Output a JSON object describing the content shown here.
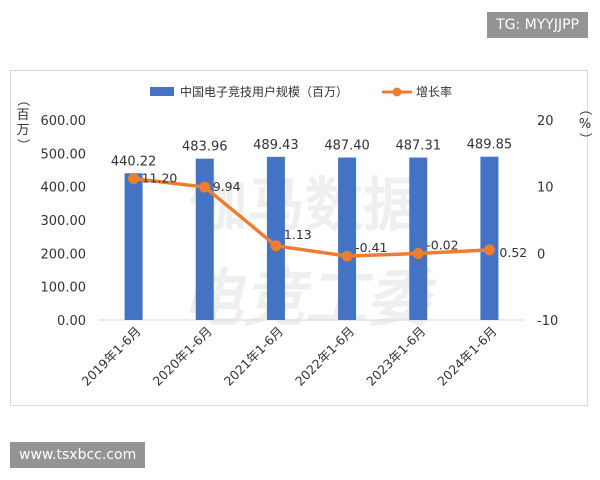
{
  "watermarks": {
    "top_right": "TG: MYYJJPP",
    "bottom_left": "www.tsxbcc.com",
    "bg_text_1": "伽马数据",
    "bg_text_2": "电竞工委"
  },
  "colors": {
    "bar": "#4472c4",
    "line": "#ed7d31",
    "axis_text": "#333333",
    "grid": "#d9d9d9"
  },
  "chart_data": {
    "type": "bar",
    "categories": [
      "2019年1-6月",
      "2020年1-6月",
      "2021年1-6月",
      "2022年1-6月",
      "2023年1-6月",
      "2024年1-6月"
    ],
    "series": [
      {
        "name": "中国电子竞技用户规模（百万）",
        "type": "bar",
        "axis": "left",
        "values": [
          440.22,
          483.96,
          489.43,
          487.4,
          487.31,
          489.85
        ],
        "labels": [
          "440.22",
          "483.96",
          "489.43",
          "487.40",
          "487.31",
          "489.85"
        ]
      },
      {
        "name": "增长率",
        "type": "line",
        "axis": "right",
        "values": [
          11.2,
          9.94,
          1.13,
          -0.41,
          -0.02,
          0.52
        ],
        "labels": [
          "11.20",
          "9.94",
          "1.13",
          "-0.41",
          "-0.02",
          "0.52"
        ]
      }
    ],
    "y_left": {
      "label": "（百万）",
      "ylim": [
        0,
        600
      ],
      "ticks": [
        "0.00",
        "100.00",
        "200.00",
        "300.00",
        "400.00",
        "500.00",
        "600.00"
      ]
    },
    "y_right": {
      "label": "（%）",
      "ylim": [
        -10,
        20
      ],
      "ticks": [
        "-10",
        "0",
        "10",
        "20"
      ]
    },
    "legend_position": "top-center",
    "grid": false
  }
}
